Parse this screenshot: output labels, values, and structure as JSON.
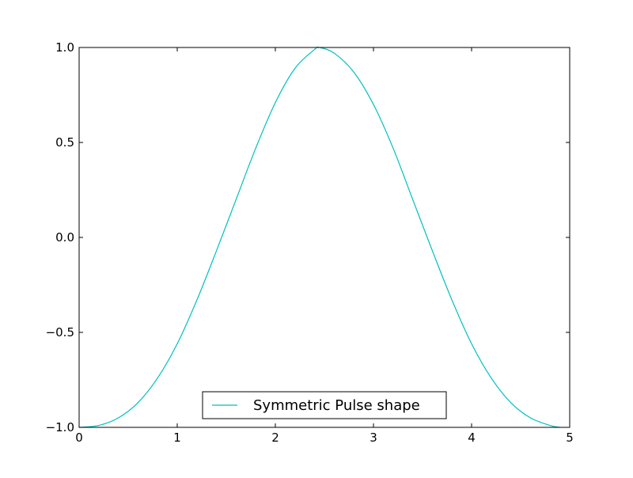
{
  "chart_data": {
    "type": "line",
    "title": "",
    "xlabel": "",
    "ylabel": "",
    "xlim": [
      0,
      5
    ],
    "ylim": [
      -1.0,
      1.0
    ],
    "x_ticks": [
      0,
      1,
      2,
      3,
      4,
      5
    ],
    "x_tick_labels": [
      "0",
      "1",
      "2",
      "3",
      "4",
      "5"
    ],
    "y_ticks": [
      -1.0,
      -0.5,
      0.0,
      0.5,
      1.0
    ],
    "y_tick_labels": [
      "−1.0",
      "−0.5",
      "0.0",
      "0.5",
      "1.0"
    ],
    "grid": false,
    "legend_position": "lower center",
    "series": [
      {
        "name": "Symmetric Pulse shape",
        "color": "#00bfbf",
        "x": [
          0.0,
          0.2,
          0.4,
          0.6,
          0.8,
          1.0,
          1.2,
          1.4,
          1.6,
          1.8,
          2.0,
          2.2,
          2.4,
          2.45,
          2.6,
          2.8,
          3.0,
          3.2,
          3.4,
          3.6,
          3.8,
          4.0,
          4.2,
          4.4,
          4.6,
          4.8,
          4.9
        ],
        "y": [
          -1.0,
          -0.99,
          -0.95,
          -0.87,
          -0.74,
          -0.56,
          -0.33,
          -0.07,
          0.2,
          0.47,
          0.71,
          0.89,
          0.99,
          1.0,
          0.97,
          0.87,
          0.7,
          0.47,
          0.2,
          -0.07,
          -0.33,
          -0.56,
          -0.74,
          -0.87,
          -0.95,
          -0.99,
          -1.0
        ]
      }
    ]
  }
}
